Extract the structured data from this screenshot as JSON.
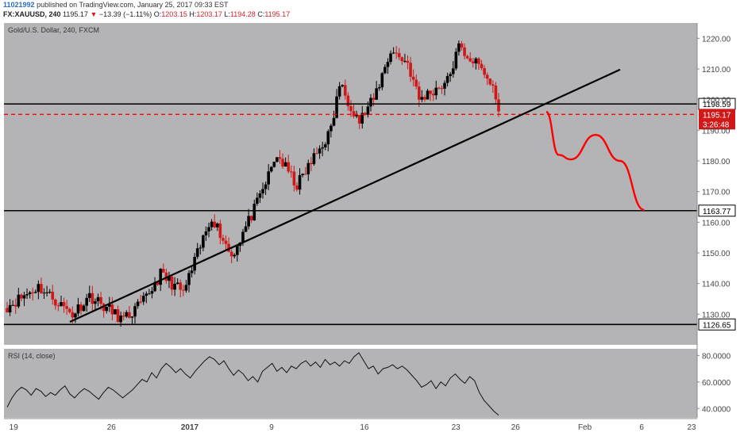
{
  "header": {
    "user": "11021992",
    "published": "published on TradingView.com, January 25, 2017 09:33 EST",
    "symbol": "FX:XAUUSD, 240",
    "last": "1195.17",
    "change": "−13.39 (−1.11%)",
    "o_label": "O:",
    "o": "1203.15",
    "h_label": "H:",
    "h": "1203.17",
    "l_label": "L:",
    "l": "1194.28",
    "c_label": "C:",
    "c": "1195.17"
  },
  "colors": {
    "panel_bg": "#b4b4b6",
    "up_candle": "#000000",
    "down_candle": "#d01818",
    "forecast": "#ff0000",
    "level_line": "#000000",
    "price_badge": "#d01818"
  },
  "chart_data": [
    {
      "type": "candlestick",
      "title": "Gold/U.S. Dollar, 240, FXCM",
      "ylim": [
        1120,
        1225
      ],
      "y_ticks": [
        1130,
        1140,
        1150,
        1160,
        1170,
        1180,
        1190,
        1200,
        1210,
        1220
      ],
      "y_tick_labels": [
        "1130.00",
        "1140.00",
        "1150.00",
        "1160.00",
        "1170.00",
        "1180.00",
        "1190.00",
        "1200.00",
        "1210.00",
        "1220.00"
      ],
      "x_tick_labels": [
        "19",
        "26",
        "2017",
        "9",
        "16",
        "23",
        "26",
        "Feb",
        "6",
        "23"
      ],
      "x_tick_fractions": [
        0.014,
        0.155,
        0.268,
        0.386,
        0.52,
        0.652,
        0.738,
        0.838,
        0.92,
        0.992
      ],
      "grid": false,
      "horizontal_levels": [
        {
          "label": "1198.59",
          "value": 1198.59
        },
        {
          "label": "1163.77",
          "value": 1163.77
        },
        {
          "label": "1126.65",
          "value": 1126.65
        }
      ],
      "current_price": {
        "label": "1195.17",
        "value": 1195.17,
        "countdown": "3:26:48"
      },
      "trendline": {
        "from": {
          "date": "2016-12-23",
          "price": 1127.5
        },
        "to": {
          "date": "2017-02-01",
          "price": 1209.8
        }
      },
      "forecast_path": [
        {
          "date": "2017-01-26",
          "price": 1196.0
        },
        {
          "date": "2017-01-27",
          "price": 1182.0
        },
        {
          "date": "2017-01-28",
          "price": 1180.5
        },
        {
          "date": "2017-01-30",
          "price": 1188.5
        },
        {
          "date": "2017-02-01",
          "price": 1180.0
        },
        {
          "date": "2017-02-03",
          "price": 1164.0
        }
      ],
      "segments": [
        {
          "from": 1132.0,
          "to": 1139.0,
          "count": 12
        },
        {
          "from": 1139.0,
          "to": 1130.0,
          "count": 12
        },
        {
          "from": 1130.0,
          "to": 1136.0,
          "count": 6
        },
        {
          "from": 1136.0,
          "to": 1128.0,
          "count": 12
        },
        {
          "from": 1128.0,
          "to": 1134.0,
          "count": 7
        },
        {
          "from": 1134.0,
          "to": 1143.0,
          "count": 6
        },
        {
          "from": 1143.0,
          "to": 1137.0,
          "count": 8
        },
        {
          "from": 1137.0,
          "to": 1162.0,
          "count": 10
        },
        {
          "from": 1162.0,
          "to": 1149.0,
          "count": 7
        },
        {
          "from": 1149.0,
          "to": 1166.0,
          "count": 9
        },
        {
          "from": 1166.0,
          "to": 1182.0,
          "count": 7
        },
        {
          "from": 1182.0,
          "to": 1172.0,
          "count": 7
        },
        {
          "from": 1172.0,
          "to": 1190.0,
          "count": 12
        },
        {
          "from": 1190.0,
          "to": 1205.0,
          "count": 3
        },
        {
          "from": 1205.0,
          "to": 1193.0,
          "count": 7
        },
        {
          "from": 1193.0,
          "to": 1200.0,
          "count": 5
        },
        {
          "from": 1200.0,
          "to": 1216.0,
          "count": 6
        },
        {
          "from": 1216.0,
          "to": 1212.0,
          "count": 6
        },
        {
          "from": 1212.0,
          "to": 1200.0,
          "count": 4
        },
        {
          "from": 1200.0,
          "to": 1206.0,
          "count": 10
        },
        {
          "from": 1206.0,
          "to": 1217.0,
          "count": 4
        },
        {
          "from": 1217.0,
          "to": 1210.0,
          "count": 8
        },
        {
          "from": 1210.0,
          "to": 1202.0,
          "count": 5
        },
        {
          "from": 1202.0,
          "to": 1195.0,
          "count": 1
        }
      ]
    },
    {
      "type": "line",
      "title": "RSI (14, close)",
      "ylim": [
        33,
        85
      ],
      "y_ticks": [
        40,
        60,
        80
      ],
      "y_tick_labels": [
        "40.0000",
        "60.0000",
        "80.0000"
      ],
      "series": [
        {
          "values": [
            41,
            48,
            53,
            56,
            54,
            50,
            55,
            53,
            49,
            52,
            50,
            54,
            57,
            51,
            48,
            52,
            55,
            53,
            50,
            47,
            52,
            56,
            54,
            51,
            48,
            51,
            54,
            58,
            62,
            60,
            67,
            63,
            70,
            74,
            71,
            67,
            70,
            66,
            63,
            68,
            72,
            76,
            79,
            77,
            73,
            76,
            70,
            65,
            69,
            66,
            61,
            64,
            60,
            68,
            71,
            74,
            68,
            71,
            67,
            72,
            70,
            74,
            76,
            72,
            75,
            71,
            77,
            73,
            75,
            72,
            76,
            74,
            79,
            82,
            76,
            70,
            72,
            66,
            70,
            71,
            73,
            70,
            72,
            69,
            65,
            61,
            56,
            58,
            61,
            55,
            60,
            57,
            63,
            66,
            62,
            59,
            64,
            61,
            52,
            46,
            42,
            38,
            35
          ]
        }
      ]
    }
  ]
}
